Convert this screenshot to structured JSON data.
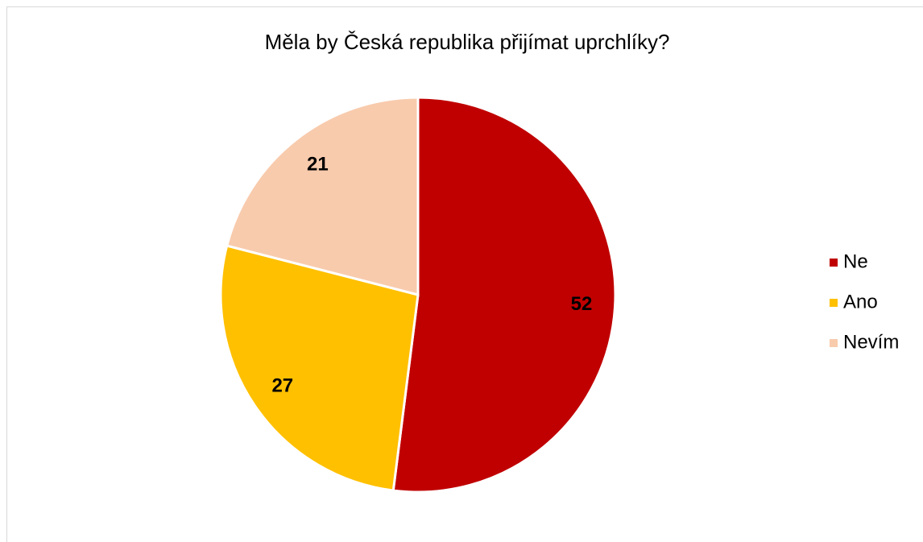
{
  "chart_data": {
    "type": "pie",
    "title": "Měla by Česká republika přijímat uprchlíky?",
    "categories": [
      "Ne",
      "Ano",
      "Nevím"
    ],
    "values": [
      52,
      27,
      21
    ],
    "colors": [
      "#c00000",
      "#ffc000",
      "#f8cbad"
    ],
    "legend": "right"
  }
}
